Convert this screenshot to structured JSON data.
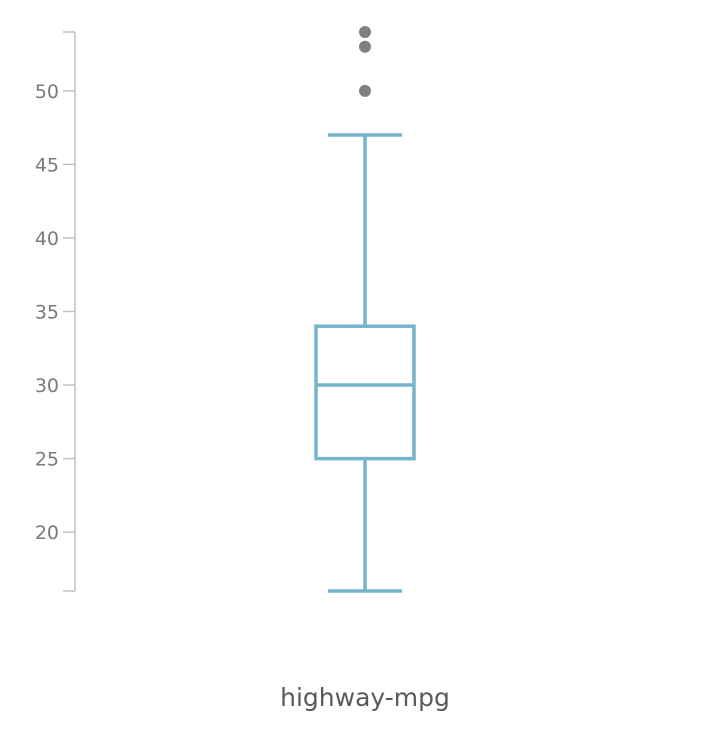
{
  "chart_data": {
    "type": "box",
    "categories": [
      "highway-mpg"
    ],
    "xlabel": "highway-mpg",
    "ylabel": "",
    "title": "",
    "ylim": [
      16,
      54
    ],
    "yticks": [
      20,
      25,
      30,
      35,
      40,
      45,
      50
    ],
    "grid": false,
    "series": [
      {
        "category": "highway-mpg",
        "whisker_low": 16,
        "q1": 25,
        "median": 30,
        "q3": 34,
        "whisker_high": 47,
        "outliers": [
          50,
          53,
          54
        ]
      }
    ],
    "colors": {
      "box": "#76b3cc",
      "outlier": "#808080",
      "axis": "#c0c0c0",
      "tick_text": "#7a7a7a",
      "label_text": "#5a5a5a"
    }
  }
}
